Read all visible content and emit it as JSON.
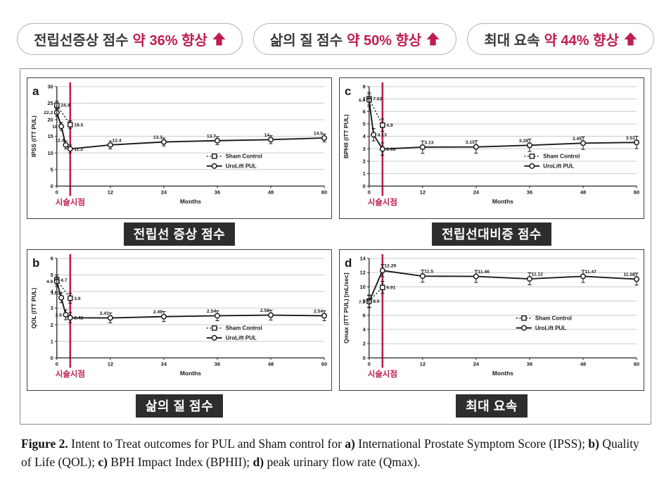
{
  "page": {
    "bg": "#ffffff",
    "accent": "#bf1d4e",
    "badge_bg": "#2d2d2d",
    "line_color": "#1a1a1a"
  },
  "banners": [
    {
      "prefix": "전립선증상 점수",
      "highlight": "약 36% 향상",
      "icon": "up-arrow-icon"
    },
    {
      "prefix": "삶의 질 점수",
      "highlight": "약 50% 향상",
      "icon": "up-arrow-icon"
    },
    {
      "prefix": "최대 요속",
      "highlight": "약 44% 향상",
      "icon": "up-arrow-icon"
    }
  ],
  "chart_data": [
    {
      "id": "a",
      "type": "line",
      "title": "",
      "ylabel": "IPSS (ITT PUL)",
      "xlabel": "Months",
      "ymax": 30,
      "ystep": 5,
      "xlim": [
        0,
        60
      ],
      "xticks": [
        0,
        12,
        24,
        36,
        48,
        60
      ],
      "grid": true,
      "procedure_line_x": 3,
      "procedure_label": "시술시점",
      "badge": "전립선 증상 점수",
      "err": 1.2,
      "legend_pos": {
        "x": 0.56,
        "y": 0.7
      },
      "series": [
        {
          "name": "Sham Control",
          "marker": "square",
          "dotted": true,
          "points": [
            {
              "x": 0,
              "y": 24.4,
              "label": "24.4",
              "lp": "r"
            },
            {
              "x": 3,
              "y": 18.5,
              "label": "18.5",
              "lp": "r"
            }
          ]
        },
        {
          "name": "UroLift PUL",
          "marker": "circle",
          "dotted": false,
          "points": [
            {
              "x": 0,
              "y": 22.2,
              "label": "22.2",
              "lp": "l"
            },
            {
              "x": 1,
              "y": 18,
              "label": "18",
              "lp": "l"
            },
            {
              "x": 2,
              "y": 12.4,
              "label": "12.4",
              "lp": "al"
            },
            {
              "x": 3,
              "y": 11.2,
              "label": "11.2",
              "lp": "r"
            },
            {
              "x": 12,
              "y": 12.4,
              "label": "12.4",
              "lp": "ar"
            },
            {
              "x": 24,
              "y": 13.3,
              "label": "13.3",
              "lp": "al"
            },
            {
              "x": 36,
              "y": 13.7,
              "label": "13.7",
              "lp": "al"
            },
            {
              "x": 48,
              "y": 14,
              "label": "14",
              "lp": "al"
            },
            {
              "x": 60,
              "y": 14.5,
              "label": "14.5",
              "lp": "al"
            }
          ]
        }
      ]
    },
    {
      "id": "c",
      "type": "line",
      "title": "",
      "ylabel": "BPHII (ITT PUL)",
      "xlabel": "Months",
      "ymax": 8,
      "ystep": 1,
      "xlim": [
        0,
        60
      ],
      "xticks": [
        0,
        12,
        24,
        36,
        48,
        60
      ],
      "grid": true,
      "procedure_line_x": 3,
      "procedure_label": "시술시점",
      "badge": "전립선대비증 점수",
      "err": 0.5,
      "legend_pos": {
        "x": 0.58,
        "y": 0.7
      },
      "series": [
        {
          "name": "Sham Control",
          "marker": "square",
          "dotted": true,
          "points": [
            {
              "x": 0,
              "y": 7.03,
              "label": "7.03",
              "lp": "r"
            },
            {
              "x": 3,
              "y": 4.9,
              "label": "4.9",
              "lp": "r"
            }
          ]
        },
        {
          "name": "UroLift PUL",
          "marker": "circle",
          "dotted": false,
          "points": [
            {
              "x": 0,
              "y": 6.9,
              "label": "6.9",
              "lp": "l"
            },
            {
              "x": 1,
              "y": 4.13,
              "label": "4.13",
              "lp": "r"
            },
            {
              "x": 3,
              "y": 2.98,
              "label": "2.98",
              "lp": "r"
            },
            {
              "x": 12,
              "y": 3.13,
              "label": "3.13",
              "lp": "ar"
            },
            {
              "x": 24,
              "y": 3.15,
              "label": "3.15",
              "lp": "al"
            },
            {
              "x": 36,
              "y": 3.28,
              "label": "3.28",
              "lp": "al"
            },
            {
              "x": 48,
              "y": 3.45,
              "label": "3.45",
              "lp": "al"
            },
            {
              "x": 60,
              "y": 3.51,
              "label": "3.51",
              "lp": "al"
            }
          ]
        }
      ]
    },
    {
      "id": "b",
      "type": "line",
      "title": "",
      "ylabel": "QOL (ITT PUL)",
      "xlabel": "Months",
      "ymax": 6,
      "ystep": 1,
      "xlim": [
        0,
        60
      ],
      "xticks": [
        0,
        12,
        24,
        36,
        48,
        60
      ],
      "grid": true,
      "procedure_line_x": 3,
      "procedure_label": "시술시점",
      "badge": "삶의 질 점수",
      "err": 0.3,
      "legend_pos": {
        "x": 0.56,
        "y": 0.7
      },
      "series": [
        {
          "name": "Sham Control",
          "marker": "square",
          "dotted": true,
          "points": [
            {
              "x": 0,
              "y": 4.7,
              "label": "4.7",
              "lp": "r"
            },
            {
              "x": 3,
              "y": 3.6,
              "label": "3.6",
              "lp": "r"
            }
          ]
        },
        {
          "name": "UroLift PUL",
          "marker": "circle",
          "dotted": false,
          "points": [
            {
              "x": 0,
              "y": 4.6,
              "label": "4.6",
              "lp": "l"
            },
            {
              "x": 1,
              "y": 3.63,
              "label": "3.63",
              "lp": "al"
            },
            {
              "x": 2,
              "y": 2.6,
              "label": "2.6",
              "lp": "l"
            },
            {
              "x": 3,
              "y": 2.42,
              "label": "2.42",
              "lp": "r"
            },
            {
              "x": 12,
              "y": 2.41,
              "label": "2.41",
              "lp": "al"
            },
            {
              "x": 24,
              "y": 2.49,
              "label": "2.49",
              "lp": "al"
            },
            {
              "x": 36,
              "y": 2.54,
              "label": "2.54",
              "lp": "al"
            },
            {
              "x": 48,
              "y": 2.58,
              "label": "2.58",
              "lp": "al"
            },
            {
              "x": 60,
              "y": 2.54,
              "label": "2.54",
              "lp": "al"
            }
          ]
        }
      ]
    },
    {
      "id": "d",
      "type": "line",
      "title": "",
      "ylabel": "Qmax (ITT PUL) [mL/sec]",
      "xlabel": "Months",
      "ymax": 14,
      "ystep": 2,
      "xlim": [
        0,
        60
      ],
      "xticks": [
        0,
        12,
        24,
        36,
        48,
        60
      ],
      "grid": true,
      "procedure_line_x": 3,
      "procedure_label": "시술시점",
      "badge": "최대 요속",
      "err": 0.85,
      "legend_pos": {
        "x": 0.55,
        "y": 0.6
      },
      "series": [
        {
          "name": "Sham Control",
          "marker": "square",
          "dotted": true,
          "points": [
            {
              "x": 0,
              "y": 8.0,
              "label": "8.0",
              "lp": "r"
            },
            {
              "x": 3,
              "y": 9.91,
              "label": "9.91",
              "lp": "r"
            }
          ]
        },
        {
          "name": "UroLift PUL",
          "marker": "circle",
          "dotted": false,
          "points": [
            {
              "x": 0,
              "y": 7.9,
              "label": "7.9",
              "lp": "l"
            },
            {
              "x": 3,
              "y": 12.29,
              "label": "12.29",
              "lp": "ar"
            },
            {
              "x": 12,
              "y": 11.5,
              "label": "11.5",
              "lp": "ar"
            },
            {
              "x": 24,
              "y": 11.46,
              "label": "11.46",
              "lp": "ar"
            },
            {
              "x": 36,
              "y": 11.12,
              "label": "11.12",
              "lp": "ar"
            },
            {
              "x": 48,
              "y": 11.47,
              "label": "11.47",
              "lp": "ar"
            },
            {
              "x": 60,
              "y": 11.08,
              "label": "11.08",
              "lp": "al"
            }
          ]
        }
      ]
    }
  ],
  "caption": {
    "segments": [
      {
        "text": "Figure 2.",
        "bold": true
      },
      {
        "text": "  Intent to Treat outcomes for PUL and Sham control for ",
        "bold": false
      },
      {
        "text": "a)",
        "bold": true
      },
      {
        "text": " International Prostate Symptom Score (IPSS); ",
        "bold": false
      },
      {
        "text": "b)",
        "bold": true
      },
      {
        "text": " Quality of Life (QOL); ",
        "bold": false
      },
      {
        "text": "c)",
        "bold": true
      },
      {
        "text": " BPH Impact Index (BPHII); ",
        "bold": false
      },
      {
        "text": "d)",
        "bold": true
      },
      {
        "text": " peak urinary flow rate (Qmax).",
        "bold": false
      }
    ]
  }
}
